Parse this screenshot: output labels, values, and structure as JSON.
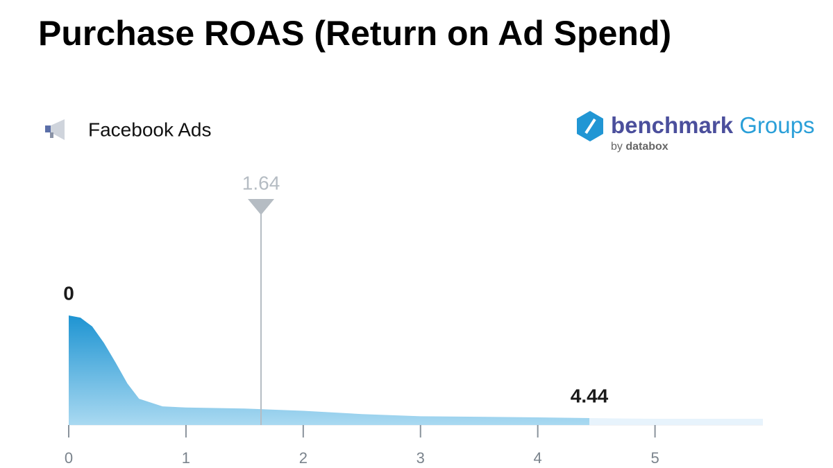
{
  "chart_data": {
    "type": "area",
    "title": "Purchase ROAS (Return on Ad Spend)",
    "series": [
      {
        "name": "Facebook Ads",
        "color": "#2196d4",
        "x": [
          0,
          0.1,
          0.2,
          0.3,
          0.4,
          0.5,
          0.6,
          0.8,
          1,
          1.5,
          2,
          2.5,
          3,
          3.5,
          4,
          4.44,
          5,
          5.92
        ],
        "values": [
          100,
          98,
          90,
          75,
          57,
          38,
          24,
          17,
          16,
          15,
          13,
          10,
          8,
          7.5,
          7,
          6.3,
          5.7,
          5.7
        ]
      }
    ],
    "xlim": [
      0,
      5.92
    ],
    "xticks": [
      0,
      1,
      2,
      3,
      4,
      5
    ],
    "ylim": [
      0,
      100
    ],
    "markers": {
      "min": 0,
      "median": 1.64,
      "max": 4.44
    }
  },
  "branding": {
    "name": "benchmark",
    "suffix": "Groups",
    "by": "by",
    "company": "databox"
  }
}
